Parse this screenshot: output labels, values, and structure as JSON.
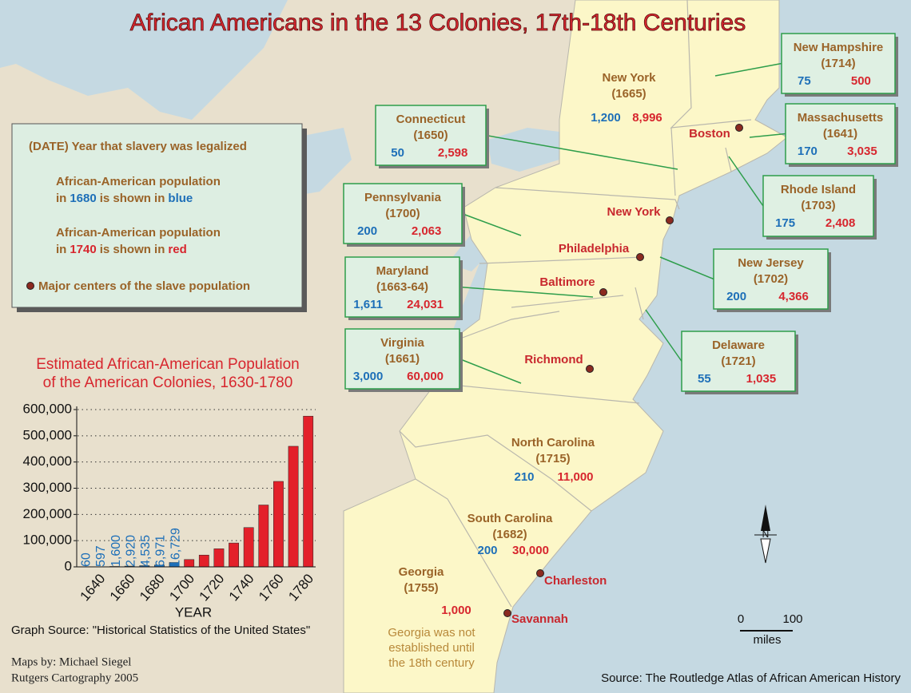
{
  "header": {
    "title": "African Americans in the 13 Colonies, 17th-18th Centuries"
  },
  "legend": {
    "date_note": "(DATE) Year that slavery was legalized",
    "blue_line1": "African-American population",
    "blue_line2": [
      "in",
      "1680",
      "is shown in",
      "blue"
    ],
    "red_line1": "African-American population",
    "red_line2": [
      "in",
      "1740",
      "is shown in",
      "red"
    ],
    "centers_note": "Major centers of the slave population"
  },
  "colonies": [
    {
      "name": "New Hampshire",
      "date": "(1714)",
      "pop_1680": "75",
      "pop_1740": "500"
    },
    {
      "name": "Massachusetts",
      "date": "(1641)",
      "pop_1680": "170",
      "pop_1740": "3,035"
    },
    {
      "name": "Rhode Island",
      "date": "(1703)",
      "pop_1680": "175",
      "pop_1740": "2,408"
    },
    {
      "name": "Connecticut",
      "date": "(1650)",
      "pop_1680": "50",
      "pop_1740": "2,598"
    },
    {
      "name": "New York",
      "date": "(1665)",
      "pop_1680": "1,200",
      "pop_1740": "8,996"
    },
    {
      "name": "New Jersey",
      "date": "(1702)",
      "pop_1680": "200",
      "pop_1740": "4,366"
    },
    {
      "name": "Pennsylvania",
      "date": "(1700)",
      "pop_1680": "200",
      "pop_1740": "2,063"
    },
    {
      "name": "Delaware",
      "date": "(1721)",
      "pop_1680": "55",
      "pop_1740": "1,035"
    },
    {
      "name": "Maryland",
      "date": "(1663-64)",
      "pop_1680": "1,611",
      "pop_1740": "24,031"
    },
    {
      "name": "Virginia",
      "date": "(1661)",
      "pop_1680": "3,000",
      "pop_1740": "60,000"
    },
    {
      "name": "North Carolina",
      "date": "(1715)",
      "pop_1680": "210",
      "pop_1740": "11,000"
    },
    {
      "name": "South Carolina",
      "date": "(1682)",
      "pop_1680": "200",
      "pop_1740": "30,000"
    },
    {
      "name": "Georgia",
      "date": "(1755)",
      "pop_1740": "1,000",
      "note": [
        "Georgia was not",
        "established until",
        "the 18th century"
      ]
    }
  ],
  "cities": [
    "Boston",
    "New York",
    "Philadelphia",
    "Baltimore",
    "Richmond",
    "Charleston",
    "Savannah"
  ],
  "scale": {
    "zero": "0",
    "max": "100",
    "unit": "miles"
  },
  "compass": "N",
  "credits": [
    "Maps by: Michael Siegel",
    "Rutgers Cartography 2005"
  ],
  "source": "Source: The Routledge Atlas of African American History",
  "chart_data": {
    "type": "bar",
    "title": [
      "Estimated African-American Population",
      "of the American Colonies, 1630-1780"
    ],
    "x_label": "YEAR",
    "source": "Graph Source: \"Historical Statistics of the United States\"",
    "categories": [
      null,
      1640,
      null,
      1660,
      null,
      1680,
      null,
      1700,
      null,
      1720,
      null,
      1740,
      null,
      1760,
      null,
      1780
    ],
    "values": [
      60,
      597,
      1600,
      2920,
      4535,
      6971,
      16729,
      28000,
      45000,
      69000,
      91000,
      150000,
      236000,
      326000,
      460000,
      575000
    ],
    "value_labels": [
      "60",
      "597",
      "1,600",
      "2,920",
      "4,535",
      "6,971",
      "16,729",
      null,
      null,
      null,
      null,
      null,
      null,
      null,
      null,
      null
    ],
    "colors": [
      "#1d6fb8",
      "#1d6fb8",
      "#1d6fb8",
      "#1d6fb8",
      "#1d6fb8",
      "#1d6fb8",
      "#1d6fb8",
      "#e3202a",
      "#e3202a",
      "#e3202a",
      "#e3202a",
      "#e3202a",
      "#e3202a",
      "#e3202a",
      "#e3202a",
      "#e3202a"
    ],
    "ylim": [
      0,
      600000
    ],
    "yticks": [
      0,
      {
        "value": 100000,
        "label": "100,000"
      },
      {
        "value": 200000,
        "label": "200,000"
      },
      {
        "value": 300000,
        "label": "300,000"
      },
      {
        "value": 400000,
        "label": "400,000"
      },
      {
        "value": 500000,
        "label": "500,000"
      },
      {
        "value": 600000,
        "label": "600,000"
      }
    ],
    "grid": true
  }
}
